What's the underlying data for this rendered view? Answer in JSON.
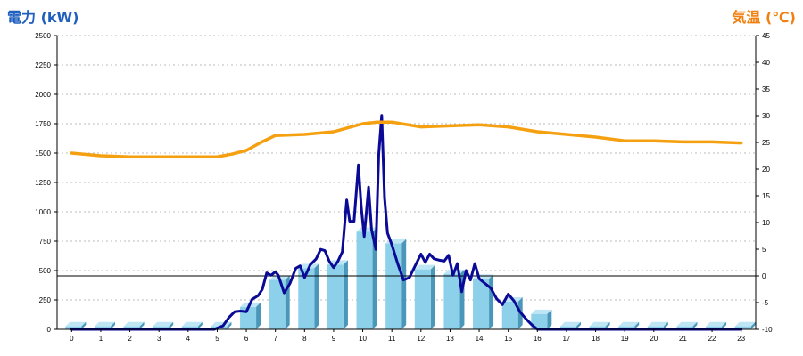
{
  "colors": {
    "left_title": "#1f5fbf",
    "right_title": "#f08010",
    "temp_line": "#f5a010",
    "power_line": "#0a0a96",
    "bar_front": "#8dd0ea",
    "bar_side": "#4a97ba",
    "bar_top": "#bfe6f5",
    "zero_line": "#000000",
    "grid": "#bbbbbb"
  },
  "chart_data": {
    "type": "bar",
    "left_axis_title": "電力 (kW)",
    "right_axis_title": "気温 (℃)",
    "categories": [
      "0",
      "1",
      "2",
      "3",
      "4",
      "5",
      "6",
      "7",
      "8",
      "9",
      "10",
      "11",
      "12",
      "13",
      "14",
      "15",
      "16",
      "17",
      "18",
      "19",
      "20",
      "21",
      "22",
      "23"
    ],
    "ylim_left": [
      0,
      2500
    ],
    "yticks_left": [
      0,
      250,
      500,
      750,
      1000,
      1250,
      1500,
      1750,
      2000,
      2250,
      2500
    ],
    "ylim_right": [
      -10,
      45
    ],
    "yticks_right": [
      -10,
      -5,
      0,
      5,
      10,
      15,
      20,
      25,
      30,
      35,
      40,
      45
    ],
    "grid": true,
    "series": [
      {
        "kind": "bar",
        "axis": "left",
        "values": [
          25,
          25,
          25,
          25,
          25,
          25,
          190,
          420,
          520,
          550,
          830,
          730,
          510,
          470,
          430,
          235,
          130,
          25,
          25,
          25,
          25,
          25,
          25,
          25
        ]
      },
      {
        "kind": "line",
        "axis": "left",
        "points": [
          [
            0,
            0
          ],
          [
            4.9,
            0
          ],
          [
            5.2,
            30
          ],
          [
            5.4,
            100
          ],
          [
            5.6,
            150
          ],
          [
            5.8,
            155
          ],
          [
            6.0,
            150
          ],
          [
            6.2,
            255
          ],
          [
            6.4,
            285
          ],
          [
            6.55,
            340
          ],
          [
            6.7,
            480
          ],
          [
            6.85,
            460
          ],
          [
            7.0,
            490
          ],
          [
            7.1,
            460
          ],
          [
            7.3,
            310
          ],
          [
            7.5,
            390
          ],
          [
            7.7,
            520
          ],
          [
            7.85,
            540
          ],
          [
            8.0,
            440
          ],
          [
            8.2,
            550
          ],
          [
            8.4,
            600
          ],
          [
            8.55,
            680
          ],
          [
            8.7,
            670
          ],
          [
            8.85,
            580
          ],
          [
            9.0,
            525
          ],
          [
            9.15,
            580
          ],
          [
            9.3,
            660
          ],
          [
            9.45,
            1100
          ],
          [
            9.55,
            920
          ],
          [
            9.7,
            920
          ],
          [
            9.85,
            1400
          ],
          [
            9.95,
            1040
          ],
          [
            10.05,
            790
          ],
          [
            10.2,
            1210
          ],
          [
            10.3,
            850
          ],
          [
            10.45,
            680
          ],
          [
            10.55,
            1490
          ],
          [
            10.65,
            1820
          ],
          [
            10.75,
            1120
          ],
          [
            10.85,
            820
          ],
          [
            11.0,
            720
          ],
          [
            11.2,
            560
          ],
          [
            11.4,
            420
          ],
          [
            11.6,
            440
          ],
          [
            11.8,
            540
          ],
          [
            12.0,
            640
          ],
          [
            12.15,
            570
          ],
          [
            12.3,
            640
          ],
          [
            12.45,
            600
          ],
          [
            12.6,
            590
          ],
          [
            12.8,
            580
          ],
          [
            12.95,
            630
          ],
          [
            13.1,
            460
          ],
          [
            13.25,
            560
          ],
          [
            13.4,
            320
          ],
          [
            13.55,
            500
          ],
          [
            13.7,
            420
          ],
          [
            13.85,
            560
          ],
          [
            14.0,
            430
          ],
          [
            14.2,
            390
          ],
          [
            14.4,
            350
          ],
          [
            14.6,
            260
          ],
          [
            14.8,
            210
          ],
          [
            15.0,
            300
          ],
          [
            15.2,
            240
          ],
          [
            15.4,
            150
          ],
          [
            15.6,
            90
          ],
          [
            15.8,
            40
          ],
          [
            16.0,
            0
          ],
          [
            23.0,
            0
          ]
        ]
      },
      {
        "kind": "line",
        "axis": "right",
        "points": [
          [
            0,
            23
          ],
          [
            1,
            22.5
          ],
          [
            2,
            22.3
          ],
          [
            3,
            22.3
          ],
          [
            4,
            22.3
          ],
          [
            5,
            22.3
          ],
          [
            5.5,
            22.8
          ],
          [
            6,
            23.5
          ],
          [
            6.5,
            25
          ],
          [
            7,
            26.3
          ],
          [
            8,
            26.5
          ],
          [
            9,
            27
          ],
          [
            10,
            28.5
          ],
          [
            10.5,
            28.8
          ],
          [
            11,
            28.8
          ],
          [
            12,
            27.9
          ],
          [
            13,
            28.1
          ],
          [
            14,
            28.3
          ],
          [
            15,
            27.9
          ],
          [
            16,
            27
          ],
          [
            17,
            26.5
          ],
          [
            18,
            26
          ],
          [
            19,
            25.3
          ],
          [
            20,
            25.3
          ],
          [
            21,
            25.1
          ],
          [
            22,
            25.1
          ],
          [
            23,
            24.9
          ]
        ]
      }
    ]
  }
}
